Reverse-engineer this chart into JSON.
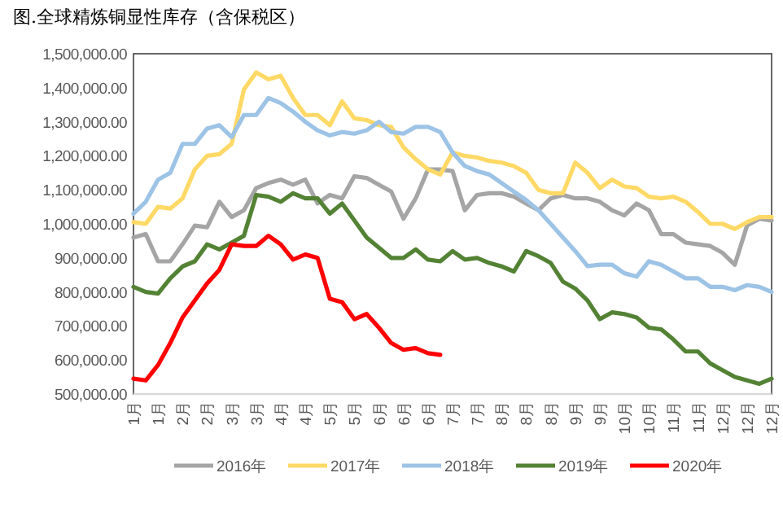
{
  "chart_data": {
    "type": "line",
    "title": "图.全球精炼铜显性库存（含保税区）",
    "categories": [
      "1月",
      null,
      "1月",
      null,
      "2月",
      null,
      "2月",
      null,
      "3月",
      null,
      "3月",
      null,
      "4月",
      null,
      "4月",
      null,
      "5月",
      null,
      "5月",
      null,
      "6月",
      null,
      "6月",
      null,
      "6月",
      null,
      "7月",
      null,
      "7月",
      null,
      "8月",
      null,
      "8月",
      null,
      "8月",
      null,
      "9月",
      null,
      "9月",
      null,
      "10月",
      null,
      "10月",
      null,
      "11月",
      null,
      "11月",
      null,
      "12月",
      null,
      "12月",
      null,
      "12月"
    ],
    "series": [
      {
        "name": "2016年",
        "color": "#a5a5a5",
        "values": [
          960000,
          970000,
          890000,
          890000,
          940000,
          995000,
          990000,
          1065000,
          1020000,
          1040000,
          1105000,
          1120000,
          1130000,
          1115000,
          1130000,
          1060000,
          1085000,
          1075000,
          1140000,
          1135000,
          1115000,
          1095000,
          1015000,
          1075000,
          1160000,
          1160000,
          1155000,
          1040000,
          1085000,
          1090000,
          1090000,
          1080000,
          1060000,
          1040000,
          1075000,
          1085000,
          1075000,
          1075000,
          1065000,
          1040000,
          1025000,
          1060000,
          1040000,
          970000,
          970000,
          945000,
          940000,
          935000,
          915000,
          880000,
          995000,
          1015000,
          1010000
        ]
      },
      {
        "name": "2017年",
        "color": "#ffd966",
        "values": [
          1005000,
          1000000,
          1050000,
          1045000,
          1075000,
          1160000,
          1200000,
          1205000,
          1235000,
          1395000,
          1445000,
          1425000,
          1435000,
          1370000,
          1320000,
          1320000,
          1290000,
          1360000,
          1310000,
          1305000,
          1290000,
          1285000,
          1225000,
          1190000,
          1160000,
          1145000,
          1210000,
          1200000,
          1195000,
          1185000,
          1180000,
          1170000,
          1150000,
          1100000,
          1090000,
          1090000,
          1180000,
          1150000,
          1105000,
          1130000,
          1110000,
          1105000,
          1080000,
          1075000,
          1080000,
          1065000,
          1035000,
          1000000,
          1000000,
          985000,
          1005000,
          1020000,
          1020000
        ]
      },
      {
        "name": "2018年",
        "color": "#9dc3e6",
        "values": [
          1030000,
          1065000,
          1130000,
          1150000,
          1235000,
          1235000,
          1280000,
          1290000,
          1255000,
          1320000,
          1320000,
          1370000,
          1355000,
          1330000,
          1300000,
          1275000,
          1260000,
          1270000,
          1265000,
          1275000,
          1300000,
          1270000,
          1265000,
          1285000,
          1285000,
          1270000,
          1210000,
          1170000,
          1155000,
          1145000,
          1120000,
          1095000,
          1070000,
          1040000,
          1000000,
          960000,
          920000,
          876000,
          880000,
          880000,
          855000,
          845000,
          890000,
          880000,
          860000,
          840000,
          840000,
          815000,
          815000,
          805000,
          820000,
          815000,
          800000
        ]
      },
      {
        "name": "2019年",
        "color": "#548235",
        "values": [
          815000,
          800000,
          795000,
          840000,
          875000,
          890000,
          940000,
          925000,
          945000,
          965000,
          1085000,
          1080000,
          1065000,
          1090000,
          1075000,
          1075000,
          1030000,
          1060000,
          1010000,
          960000,
          930000,
          900000,
          900000,
          925000,
          895000,
          890000,
          920000,
          895000,
          900000,
          885000,
          875000,
          860000,
          920000,
          905000,
          885000,
          830000,
          810000,
          775000,
          720000,
          740000,
          735000,
          725000,
          695000,
          690000,
          660000,
          625000,
          625000,
          590000,
          570000,
          550000,
          540000,
          530000,
          545000
        ]
      },
      {
        "name": "2020年",
        "color": "#ff0000",
        "values": [
          545000,
          540000,
          585000,
          650000,
          725000,
          775000,
          825000,
          865000,
          940000,
          935000,
          935000,
          965000,
          940000,
          895000,
          910000,
          900000,
          780000,
          770000,
          720000,
          735000,
          695000,
          650000,
          630000,
          635000,
          620000,
          615000,
          null,
          null,
          null,
          null,
          null,
          null,
          null,
          null,
          null,
          null,
          null,
          null,
          null,
          null,
          null,
          null,
          null,
          null,
          null,
          null,
          null,
          null,
          null,
          null,
          null,
          null,
          null
        ]
      }
    ],
    "ylim": [
      500000,
      1500000
    ],
    "yticks": [
      {
        "value": 500000,
        "label": "500,000.00"
      },
      {
        "value": 600000,
        "label": "600,000.00"
      },
      {
        "value": 700000,
        "label": "700,000.00"
      },
      {
        "value": 800000,
        "label": "800,000.00"
      },
      {
        "value": 900000,
        "label": "900,000.00"
      },
      {
        "value": 1000000,
        "label": "1,000,000.00"
      },
      {
        "value": 1100000,
        "label": "1,100,000.00"
      },
      {
        "value": 1200000,
        "label": "1,200,000.00"
      },
      {
        "value": 1300000,
        "label": "1,300,000.00"
      },
      {
        "value": 1400000,
        "label": "1,400,000.00"
      },
      {
        "value": 1500000,
        "label": "1,500,000.00"
      }
    ],
    "grid": false,
    "legend": "bottom"
  }
}
